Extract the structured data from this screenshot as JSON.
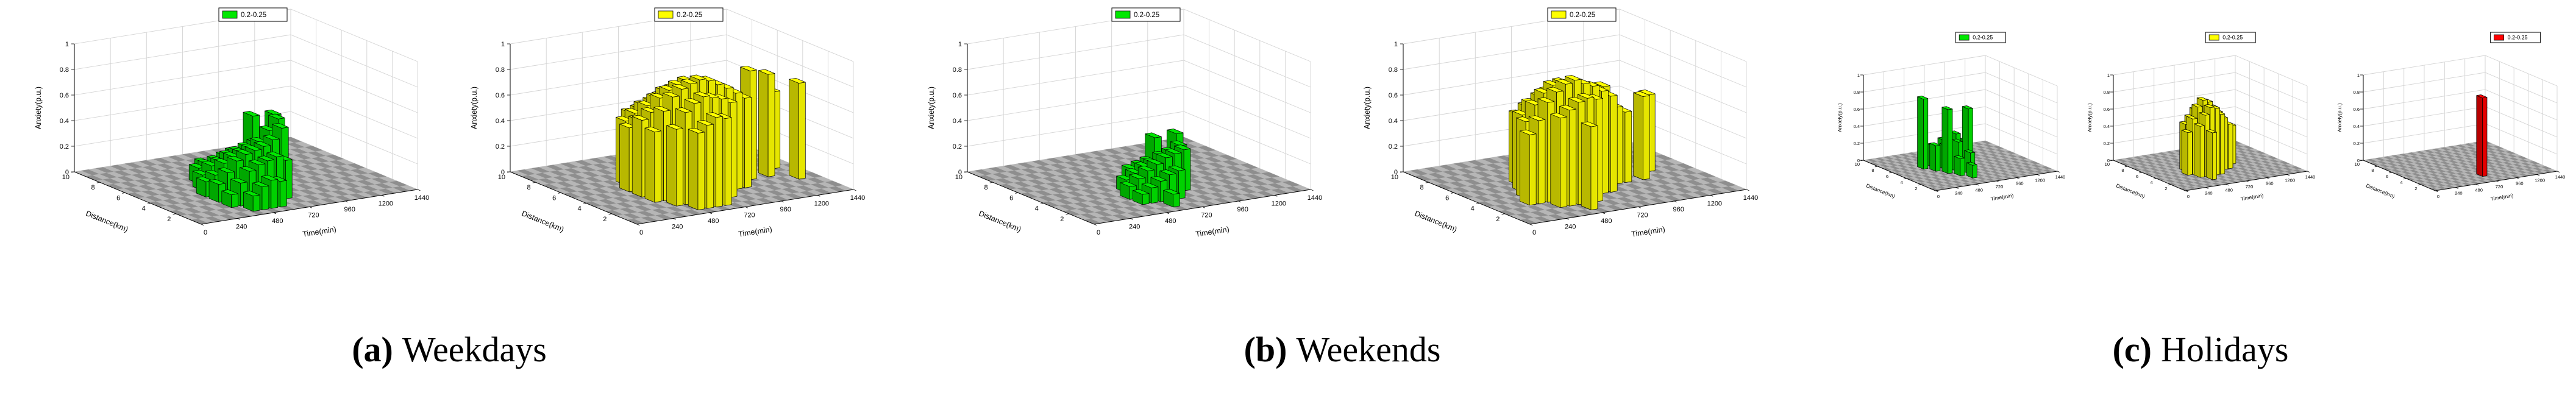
{
  "figure": {
    "background": "#ffffff",
    "text_color": "#000000",
    "panels": [
      {
        "caption_letter": "(a)",
        "caption_text": "Weekdays"
      },
      {
        "caption_letter": "(b)",
        "caption_text": "Weekends"
      },
      {
        "caption_letter": "(c)",
        "caption_text": "Holidays"
      }
    ]
  },
  "chart_data": [
    {
      "id": "weekdays-green",
      "type": "3d-bar",
      "panel": "a",
      "series_color": "#00e800",
      "legend_label": "0.2-0.25",
      "xlabel": "Time(min)",
      "ylabel": "Distance(km)",
      "zlabel": "Anxiety(p.u.)",
      "xlim": [
        0,
        1440
      ],
      "ylim": [
        0,
        10
      ],
      "zlim": [
        0,
        1
      ],
      "xticks": [
        0,
        240,
        480,
        720,
        960,
        1200,
        1440
      ],
      "yticks": [
        0,
        2,
        4,
        6,
        8,
        10
      ],
      "zticks": [
        0,
        0.2,
        0.4,
        0.6,
        0.8,
        1
      ],
      "grid": true,
      "legend_position": "top-center",
      "bars": [
        [
          360,
          2,
          0.1
        ],
        [
          360,
          3,
          0.14
        ],
        [
          360,
          4,
          0.12
        ],
        [
          420,
          1,
          0.12
        ],
        [
          420,
          2,
          0.18
        ],
        [
          420,
          3,
          0.22
        ],
        [
          420,
          4,
          0.16
        ],
        [
          420,
          5,
          0.12
        ],
        [
          480,
          1,
          0.18
        ],
        [
          480,
          2,
          0.26
        ],
        [
          480,
          3,
          0.3
        ],
        [
          480,
          4,
          0.24
        ],
        [
          480,
          5,
          0.18
        ],
        [
          480,
          6,
          0.12
        ],
        [
          540,
          1,
          0.22
        ],
        [
          540,
          2,
          0.3
        ],
        [
          540,
          3,
          0.34
        ],
        [
          540,
          4,
          0.28
        ],
        [
          540,
          5,
          0.2
        ],
        [
          540,
          6,
          0.14
        ],
        [
          600,
          1,
          0.2
        ],
        [
          600,
          2,
          0.32
        ],
        [
          600,
          3,
          0.36
        ],
        [
          600,
          4,
          0.3
        ],
        [
          600,
          5,
          0.24
        ],
        [
          600,
          6,
          0.16
        ],
        [
          600,
          7,
          0.1
        ],
        [
          660,
          2,
          0.34
        ],
        [
          660,
          3,
          0.38
        ],
        [
          660,
          4,
          0.32
        ],
        [
          660,
          5,
          0.26
        ],
        [
          660,
          6,
          0.18
        ],
        [
          720,
          2,
          0.3
        ],
        [
          720,
          3,
          0.42
        ],
        [
          720,
          4,
          0.36
        ],
        [
          720,
          5,
          0.28
        ],
        [
          720,
          6,
          0.2
        ],
        [
          780,
          3,
          0.5
        ],
        [
          780,
          4,
          0.44
        ],
        [
          780,
          5,
          0.3
        ],
        [
          840,
          4,
          0.52
        ],
        [
          840,
          6,
          0.46
        ],
        [
          900,
          5,
          0.5
        ]
      ]
    },
    {
      "id": "weekdays-yellow",
      "type": "3d-bar",
      "panel": "a",
      "series_color": "#ffff00",
      "legend_label": "0.2-0.25",
      "xlabel": "Time(min)",
      "ylabel": "Distance(km)",
      "zlabel": "Anxiety(p.u.)",
      "xlim": [
        0,
        1440
      ],
      "ylim": [
        0,
        10
      ],
      "zlim": [
        0,
        1
      ],
      "xticks": [
        0,
        240,
        480,
        720,
        960,
        1200,
        1440
      ],
      "yticks": [
        0,
        2,
        4,
        6,
        8,
        10
      ],
      "zticks": [
        0,
        0.2,
        0.4,
        0.6,
        0.8,
        1
      ],
      "grid": true,
      "legend_position": "top-center",
      "bars": [
        [
          360,
          3,
          0.55
        ],
        [
          360,
          4,
          0.6
        ],
        [
          360,
          5,
          0.5
        ],
        [
          420,
          2,
          0.6
        ],
        [
          420,
          3,
          0.7
        ],
        [
          420,
          4,
          0.65
        ],
        [
          420,
          5,
          0.55
        ],
        [
          420,
          6,
          0.5
        ],
        [
          480,
          1,
          0.6
        ],
        [
          480,
          2,
          0.72
        ],
        [
          480,
          3,
          0.8
        ],
        [
          480,
          4,
          0.75
        ],
        [
          480,
          5,
          0.65
        ],
        [
          480,
          6,
          0.55
        ],
        [
          540,
          1,
          0.65
        ],
        [
          540,
          2,
          0.78
        ],
        [
          540,
          3,
          0.85
        ],
        [
          540,
          4,
          0.8
        ],
        [
          540,
          5,
          0.7
        ],
        [
          540,
          6,
          0.6
        ],
        [
          540,
          7,
          0.5
        ],
        [
          600,
          1,
          0.7
        ],
        [
          600,
          2,
          0.82
        ],
        [
          600,
          3,
          0.88
        ],
        [
          600,
          4,
          0.83
        ],
        [
          600,
          5,
          0.74
        ],
        [
          600,
          6,
          0.62
        ],
        [
          600,
          7,
          0.52
        ],
        [
          660,
          1,
          0.68
        ],
        [
          660,
          2,
          0.8
        ],
        [
          660,
          3,
          0.9
        ],
        [
          660,
          4,
          0.85
        ],
        [
          660,
          5,
          0.75
        ],
        [
          660,
          6,
          0.65
        ],
        [
          720,
          2,
          0.78
        ],
        [
          720,
          3,
          0.88
        ],
        [
          720,
          4,
          0.82
        ],
        [
          720,
          5,
          0.72
        ],
        [
          720,
          6,
          0.6
        ],
        [
          780,
          2,
          0.74
        ],
        [
          780,
          3,
          0.84
        ],
        [
          780,
          4,
          0.8
        ],
        [
          780,
          5,
          0.68
        ],
        [
          780,
          7,
          0.5
        ],
        [
          840,
          3,
          0.8
        ],
        [
          840,
          4,
          0.76
        ],
        [
          840,
          5,
          0.64
        ],
        [
          840,
          6,
          0.55
        ],
        [
          900,
          3,
          0.75
        ],
        [
          900,
          4,
          0.7
        ],
        [
          900,
          5,
          0.6
        ],
        [
          960,
          3,
          0.7
        ],
        [
          960,
          4,
          0.66
        ],
        [
          960,
          5,
          0.55
        ],
        [
          1020,
          4,
          0.6
        ],
        [
          1020,
          5,
          0.5
        ],
        [
          1080,
          4,
          0.85
        ],
        [
          1080,
          5,
          0.55
        ],
        [
          1200,
          4,
          0.8
        ],
        [
          1320,
          3,
          0.75
        ],
        [
          1320,
          5,
          0.6
        ]
      ]
    },
    {
      "id": "weekends-green",
      "type": "3d-bar",
      "panel": "b",
      "series_color": "#00e800",
      "legend_label": "0.2-0.25",
      "xlabel": "Time(min)",
      "ylabel": "Distance(km)",
      "zlabel": "Anxiety(p.u.)",
      "xlim": [
        0,
        1440
      ],
      "ylim": [
        0,
        10
      ],
      "zlim": [
        0,
        1
      ],
      "xticks": [
        0,
        240,
        480,
        720,
        960,
        1200,
        1440
      ],
      "yticks": [
        0,
        2,
        4,
        6,
        8,
        10
      ],
      "zticks": [
        0,
        0.2,
        0.4,
        0.6,
        0.8,
        1
      ],
      "grid": true,
      "legend_position": "top-center",
      "bars": [
        [
          480,
          2,
          0.08
        ],
        [
          480,
          3,
          0.1
        ],
        [
          540,
          2,
          0.12
        ],
        [
          540,
          3,
          0.15
        ],
        [
          540,
          4,
          0.1
        ],
        [
          600,
          1,
          0.1
        ],
        [
          600,
          2,
          0.16
        ],
        [
          600,
          3,
          0.2
        ],
        [
          600,
          4,
          0.14
        ],
        [
          660,
          2,
          0.2
        ],
        [
          660,
          3,
          0.24
        ],
        [
          660,
          4,
          0.18
        ],
        [
          660,
          5,
          0.12
        ],
        [
          720,
          2,
          0.22
        ],
        [
          720,
          3,
          0.28
        ],
        [
          720,
          4,
          0.2
        ],
        [
          720,
          5,
          0.14
        ],
        [
          780,
          3,
          0.3
        ],
        [
          780,
          4,
          0.24
        ],
        [
          780,
          5,
          0.16
        ],
        [
          840,
          3,
          0.32
        ],
        [
          840,
          4,
          0.26
        ],
        [
          900,
          4,
          0.3
        ],
        [
          900,
          6,
          0.28
        ],
        [
          960,
          5,
          0.34
        ]
      ]
    },
    {
      "id": "weekends-yellow",
      "type": "3d-bar",
      "panel": "b",
      "series_color": "#ffff00",
      "legend_label": "0.2-0.25",
      "xlabel": "Time(min)",
      "ylabel": "Distance(km)",
      "zlabel": "Anxiety(p.u.)",
      "xlim": [
        0,
        1440
      ],
      "ylim": [
        0,
        10
      ],
      "zlim": [
        0,
        1
      ],
      "xticks": [
        0,
        240,
        480,
        720,
        960,
        1200,
        1440
      ],
      "yticks": [
        0,
        2,
        4,
        6,
        8,
        10
      ],
      "zticks": [
        0,
        0.2,
        0.4,
        0.6,
        0.8,
        1
      ],
      "grid": true,
      "legend_position": "top-center",
      "bars": [
        [
          240,
          3,
          0.55
        ],
        [
          300,
          3,
          0.65
        ],
        [
          300,
          4,
          0.6
        ],
        [
          360,
          2,
          0.7
        ],
        [
          360,
          3,
          0.78
        ],
        [
          360,
          4,
          0.72
        ],
        [
          360,
          5,
          0.6
        ],
        [
          420,
          2,
          0.75
        ],
        [
          420,
          3,
          0.85
        ],
        [
          420,
          4,
          0.8
        ],
        [
          420,
          5,
          0.68
        ],
        [
          420,
          6,
          0.55
        ],
        [
          480,
          1,
          0.65
        ],
        [
          480,
          2,
          0.8
        ],
        [
          480,
          3,
          0.9
        ],
        [
          480,
          4,
          0.85
        ],
        [
          480,
          5,
          0.72
        ],
        [
          480,
          6,
          0.6
        ],
        [
          540,
          2,
          0.82
        ],
        [
          540,
          3,
          0.92
        ],
        [
          540,
          4,
          0.86
        ],
        [
          540,
          5,
          0.75
        ],
        [
          540,
          6,
          0.62
        ],
        [
          600,
          2,
          0.8
        ],
        [
          600,
          3,
          0.88
        ],
        [
          600,
          4,
          0.84
        ],
        [
          600,
          5,
          0.7
        ],
        [
          600,
          7,
          0.5
        ],
        [
          660,
          3,
          0.85
        ],
        [
          660,
          4,
          0.8
        ],
        [
          660,
          5,
          0.68
        ],
        [
          660,
          6,
          0.55
        ],
        [
          720,
          3,
          0.8
        ],
        [
          720,
          4,
          0.76
        ],
        [
          720,
          5,
          0.64
        ],
        [
          780,
          3,
          0.75
        ],
        [
          780,
          4,
          0.7
        ],
        [
          780,
          6,
          0.52
        ],
        [
          840,
          4,
          0.66
        ],
        [
          840,
          5,
          0.56
        ],
        [
          900,
          4,
          0.6
        ],
        [
          900,
          5,
          0.72
        ],
        [
          960,
          4,
          0.55
        ],
        [
          1080,
          4,
          0.65
        ],
        [
          1200,
          5,
          0.6
        ]
      ]
    },
    {
      "id": "holidays-green",
      "type": "3d-bar",
      "panel": "c",
      "series_color": "#00e800",
      "legend_label": "0.2-0.25",
      "xlabel": "Time(min)",
      "ylabel": "Distance(km)",
      "zlabel": "Anxiety(p.u.)",
      "xlim": [
        0,
        1440
      ],
      "ylim": [
        0,
        10
      ],
      "zlim": [
        0,
        1
      ],
      "xticks": [
        0,
        240,
        480,
        720,
        960,
        1200,
        1440
      ],
      "yticks": [
        0,
        2,
        4,
        6,
        8,
        10
      ],
      "zticks": [
        0,
        0.2,
        0.4,
        0.6,
        0.8,
        1
      ],
      "grid": true,
      "legend_position": "top-center",
      "bars": [
        [
          360,
          6,
          0.82
        ],
        [
          420,
          5,
          0.3
        ],
        [
          480,
          4,
          0.75
        ],
        [
          480,
          6,
          0.25
        ],
        [
          540,
          3,
          0.2
        ],
        [
          540,
          5,
          0.28
        ],
        [
          540,
          7,
          0.18
        ],
        [
          600,
          2,
          0.15
        ],
        [
          600,
          4,
          0.35
        ],
        [
          600,
          6,
          0.3
        ],
        [
          660,
          3,
          0.25
        ],
        [
          660,
          5,
          0.4
        ],
        [
          720,
          4,
          0.72
        ],
        [
          720,
          6,
          0.2
        ],
        [
          780,
          5,
          0.3
        ]
      ]
    },
    {
      "id": "holidays-yellow",
      "type": "3d-bar",
      "panel": "c",
      "series_color": "#ffff00",
      "legend_label": "0.2-0.25",
      "xlabel": "Time(min)",
      "ylabel": "Distance(km)",
      "zlabel": "Anxiety(p.u.)",
      "xlim": [
        0,
        1440
      ],
      "ylim": [
        0,
        10
      ],
      "zlim": [
        0,
        1
      ],
      "xticks": [
        0,
        240,
        480,
        720,
        960,
        1200,
        1440
      ],
      "yticks": [
        0,
        2,
        4,
        6,
        8,
        10
      ],
      "zticks": [
        0,
        0.2,
        0.4,
        0.6,
        0.8,
        1
      ],
      "grid": true,
      "legend_position": "top-center",
      "bars": [
        [
          360,
          4,
          0.5
        ],
        [
          420,
          3,
          0.6
        ],
        [
          420,
          4,
          0.65
        ],
        [
          420,
          5,
          0.55
        ],
        [
          480,
          2,
          0.55
        ],
        [
          480,
          3,
          0.72
        ],
        [
          480,
          4,
          0.78
        ],
        [
          480,
          5,
          0.62
        ],
        [
          540,
          3,
          0.8
        ],
        [
          540,
          4,
          0.85
        ],
        [
          540,
          5,
          0.7
        ],
        [
          540,
          6,
          0.5
        ],
        [
          600,
          3,
          0.78
        ],
        [
          600,
          4,
          0.82
        ],
        [
          600,
          5,
          0.66
        ],
        [
          660,
          3,
          0.7
        ],
        [
          660,
          4,
          0.75
        ],
        [
          660,
          5,
          0.6
        ],
        [
          720,
          4,
          0.68
        ],
        [
          720,
          5,
          0.55
        ],
        [
          780,
          4,
          0.6
        ],
        [
          840,
          4,
          0.52
        ],
        [
          960,
          5,
          0.45
        ]
      ]
    },
    {
      "id": "holidays-red",
      "type": "3d-bar",
      "panel": "c",
      "series_color": "#ff0000",
      "legend_label": "0.2-0.25",
      "xlabel": "Time(min)",
      "ylabel": "Distance(km)",
      "zlabel": "Anxiety(p.u.)",
      "xlim": [
        0,
        1440
      ],
      "ylim": [
        0,
        10
      ],
      "zlim": [
        0,
        1
      ],
      "xticks": [
        0,
        240,
        480,
        720,
        960,
        1200,
        1440
      ],
      "yticks": [
        0,
        2,
        4,
        6,
        8,
        10
      ],
      "zticks": [
        0,
        0.2,
        0.4,
        0.6,
        0.8,
        1
      ],
      "grid": true,
      "legend_position": "top-right",
      "bars": [
        [
          720,
          2,
          0.92
        ]
      ]
    }
  ]
}
